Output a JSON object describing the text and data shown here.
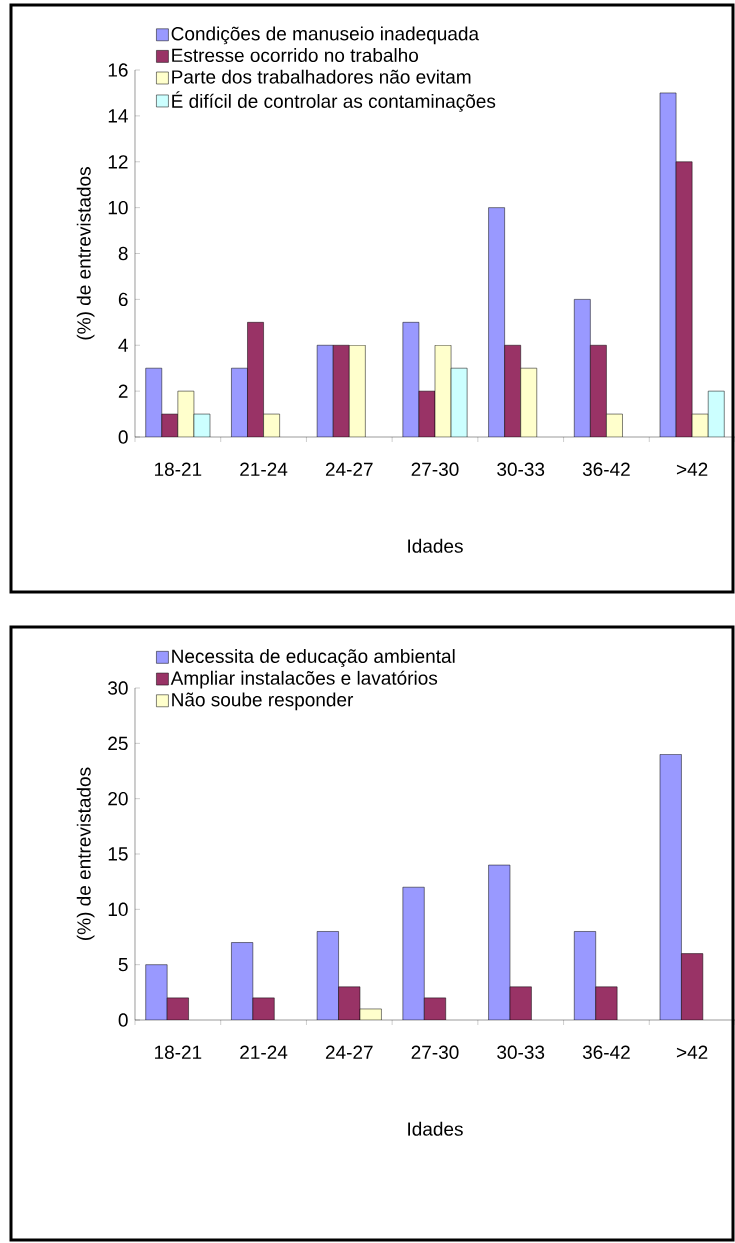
{
  "chart_data": [
    {
      "type": "bar",
      "xlabel": "Idades",
      "ylabel": "(%) de entrevistados",
      "categories": [
        "18-21",
        "21-24",
        "24-27",
        "27-30",
        "30-33",
        "36-42",
        ">42"
      ],
      "series": [
        {
          "name": "Condições de manuseio inadequada",
          "color": "#9999ff",
          "values": [
            3,
            3,
            4,
            5,
            10,
            6,
            15
          ]
        },
        {
          "name": "Estresse ocorrido no trabalho",
          "color": "#993366",
          "values": [
            1,
            5,
            4,
            2,
            4,
            4,
            12
          ]
        },
        {
          "name": "Parte dos trabalhadores  não evitam",
          "color": "#ffffcc",
          "values": [
            2,
            1,
            4,
            4,
            3,
            1,
            1
          ]
        },
        {
          "name": "É difícil de controlar as contaminações",
          "color": "#ccffff",
          "values": [
            1,
            null,
            null,
            3,
            null,
            null,
            2
          ]
        }
      ],
      "ylim": [
        0,
        16
      ],
      "yticks": [
        0,
        2,
        4,
        6,
        8,
        10,
        12,
        14,
        16
      ],
      "legend": "top"
    },
    {
      "type": "bar",
      "xlabel": "Idades",
      "ylabel": "(%) de entrevistados",
      "categories": [
        "18-21",
        "21-24",
        "24-27",
        "27-30",
        "30-33",
        "36-42",
        ">42"
      ],
      "series": [
        {
          "name": "Necessita de educação ambiental",
          "color": "#9999ff",
          "values": [
            5,
            7,
            8,
            12,
            14,
            8,
            24
          ]
        },
        {
          "name": "Ampliar instalacões e lavatórios",
          "color": "#993366",
          "values": [
            2,
            2,
            3,
            2,
            3,
            3,
            6
          ]
        },
        {
          "name": "Não soube responder",
          "color": "#ffffcc",
          "values": [
            null,
            null,
            1,
            null,
            null,
            null,
            null
          ]
        }
      ],
      "ylim": [
        0,
        30
      ],
      "yticks": [
        0,
        5,
        10,
        15,
        20,
        25,
        30
      ],
      "legend": "top"
    }
  ]
}
